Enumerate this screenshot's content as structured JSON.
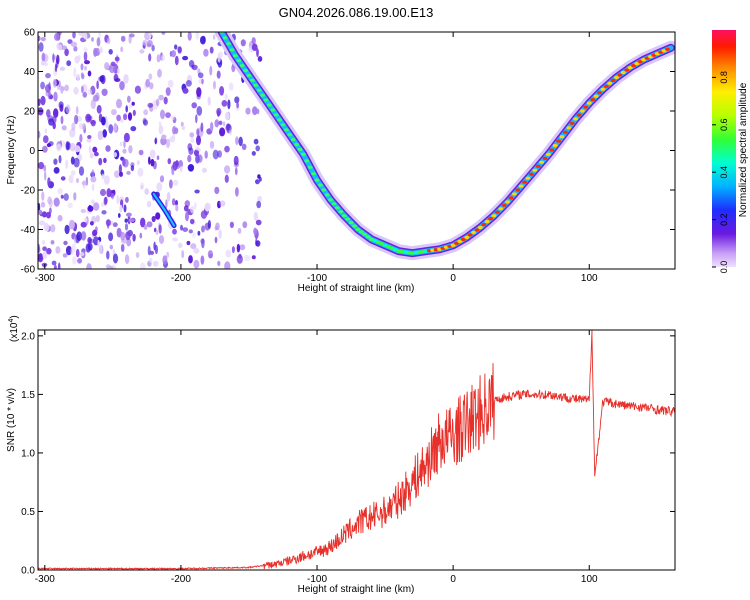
{
  "title": "GN04.2026.086.19.00.E13",
  "chart_data": [
    {
      "type": "heatmap",
      "xlabel": "Height of straight line (km)",
      "ylabel": "Frequency (Hz)",
      "xlim": [
        -305,
        163
      ],
      "ylim": [
        -60,
        60
      ],
      "xticks": [
        -300,
        -200,
        -100,
        0,
        100
      ],
      "yticks": [
        -60,
        -40,
        -20,
        0,
        20,
        40,
        60
      ],
      "colorbar": {
        "label": "Normalized spectral amplitude",
        "range": [
          0,
          1
        ],
        "ticks": [
          0.0,
          0.2,
          0.4,
          0.6,
          0.8
        ]
      },
      "ridge": {
        "x": [
          -170,
          -160,
          -150,
          -140,
          -130,
          -120,
          -110,
          -100,
          -90,
          -80,
          -70,
          -60,
          -50,
          -40,
          -30,
          -20,
          -10,
          0,
          10,
          20,
          30,
          40,
          50,
          60,
          70,
          80,
          90,
          100,
          110,
          120,
          130,
          140,
          150,
          160
        ],
        "y": [
          60,
          48,
          38,
          28,
          18,
          8,
          -2,
          -15,
          -25,
          -33,
          -40,
          -45,
          -48,
          -51,
          -52,
          -51,
          -50,
          -48,
          -44,
          -39,
          -33,
          -26,
          -18,
          -10,
          -2,
          7,
          16,
          24,
          31,
          37,
          42,
          46,
          49,
          52
        ]
      }
    },
    {
      "type": "line",
      "xlabel": "Height of straight line (km)",
      "ylabel": "SNR (10 * v/v)",
      "scale_label": "(x10",
      "scale_exp": "4",
      "scale_close": ")",
      "xlim": [
        -305,
        163
      ],
      "ylim": [
        0,
        2.05
      ],
      "xticks": [
        -300,
        -200,
        -100,
        0,
        100
      ],
      "yticks": [
        0.0,
        0.5,
        1.0,
        1.5,
        2.0
      ],
      "series": [
        {
          "color": "#e8302a",
          "x": [
            -305,
            -250,
            -200,
            -150,
            -130,
            -120,
            -110,
            -100,
            -90,
            -80,
            -70,
            -60,
            -50,
            -40,
            -30,
            -20,
            -10,
            0,
            10,
            20,
            30,
            40,
            50,
            60,
            70,
            80,
            90,
            100,
            102,
            104,
            110,
            120,
            130,
            140,
            150,
            163
          ],
          "y": [
            0.01,
            0.01,
            0.01,
            0.02,
            0.05,
            0.08,
            0.12,
            0.15,
            0.2,
            0.3,
            0.4,
            0.45,
            0.5,
            0.6,
            0.75,
            0.9,
            1.1,
            1.15,
            1.25,
            1.35,
            1.45,
            1.48,
            1.5,
            1.5,
            1.5,
            1.48,
            1.46,
            1.45,
            2.05,
            0.8,
            1.44,
            1.42,
            1.4,
            1.39,
            1.37,
            1.35
          ]
        }
      ]
    }
  ]
}
